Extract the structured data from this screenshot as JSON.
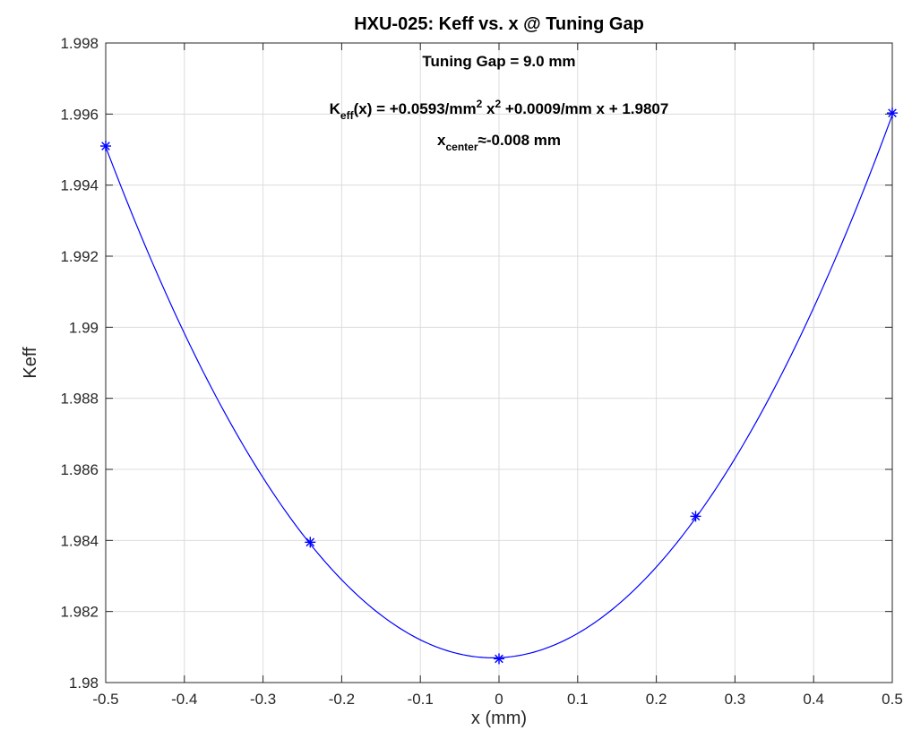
{
  "chart_data": {
    "type": "line",
    "title": "HXU-025: Keff vs. x @ Tuning Gap",
    "xlabel": "x (mm)",
    "ylabel": "Keff",
    "xlim": [
      -0.5,
      0.5
    ],
    "ylim": [
      1.98,
      1.998
    ],
    "grid": true,
    "xticks": [
      -0.5,
      -0.4,
      -0.3,
      -0.2,
      -0.1,
      0,
      0.1,
      0.2,
      0.3,
      0.4,
      0.5
    ],
    "xtick_labels": [
      "-0.5",
      "-0.4",
      "-0.3",
      "-0.2",
      "-0.1",
      "0",
      "0.1",
      "0.2",
      "0.3",
      "0.4",
      "0.5"
    ],
    "yticks": [
      1.98,
      1.982,
      1.984,
      1.986,
      1.988,
      1.99,
      1.992,
      1.994,
      1.996,
      1.998
    ],
    "ytick_labels": [
      "1.98",
      "1.982",
      "1.984",
      "1.986",
      "1.988",
      "1.99",
      "1.992",
      "1.994",
      "1.996",
      "1.998"
    ],
    "fit": {
      "a": 0.0593,
      "b": 0.0009,
      "c": 1.9807
    },
    "series": [
      {
        "marker": "asterisk",
        "color": "#0000ff",
        "x": [
          -0.5,
          -0.24,
          0,
          0.25,
          0.5
        ],
        "y": [
          1.9951,
          1.98395,
          1.98067,
          1.98468,
          1.99603
        ]
      }
    ],
    "annotations": {
      "gap": "Tuning Gap = 9.0 mm",
      "fit_prefix": "K",
      "fit_sub": "eff",
      "fit_part1": "(x) = +0.0593/mm",
      "fit_sup1": "2",
      "fit_part2": " x",
      "fit_sup2": "2",
      "fit_part3": " +0.0009/mm x + 1.9807",
      "center_main": "x",
      "center_sub": "center",
      "center_value": "≈-0.008 mm"
    }
  }
}
